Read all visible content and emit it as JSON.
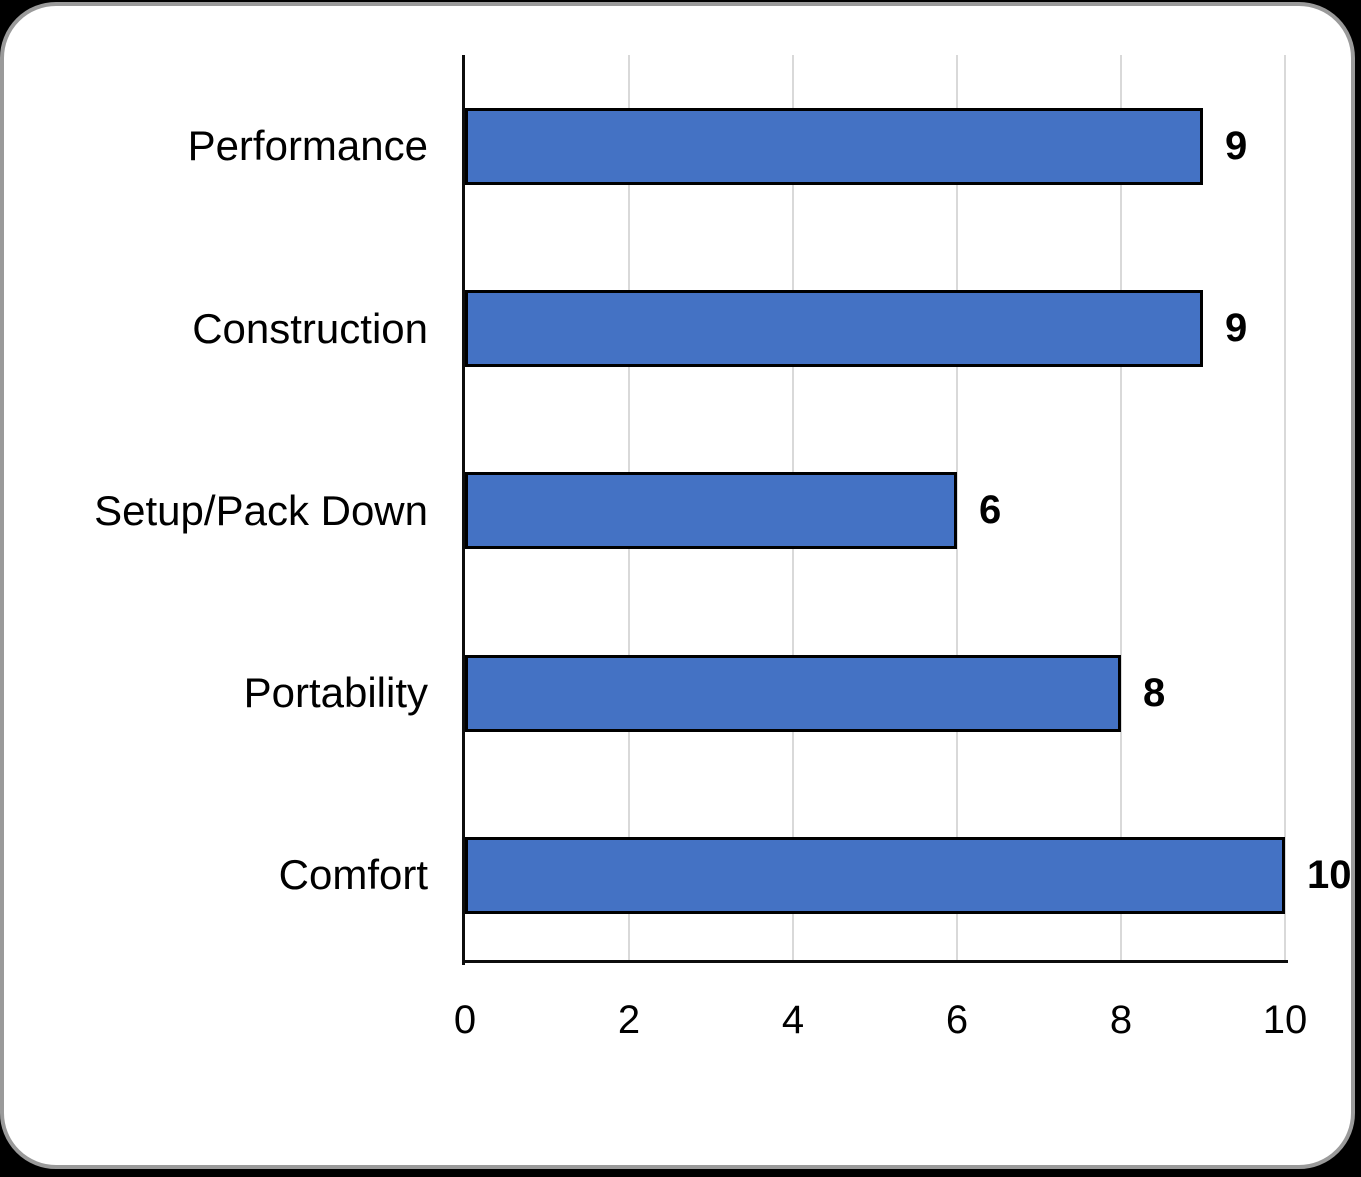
{
  "chart_data": {
    "type": "bar",
    "orientation": "horizontal",
    "title": "",
    "xlabel": "",
    "ylabel": "",
    "categories": [
      "Performance",
      "Construction",
      "Setup/Pack Down",
      "Portability",
      "Comfort"
    ],
    "values": [
      9,
      9,
      6,
      8,
      10
    ],
    "data_labels": [
      "9",
      "9",
      "6",
      "8",
      "10"
    ],
    "xlim": [
      0,
      10
    ],
    "x_ticks": [
      "0",
      "2",
      "4",
      "6",
      "8",
      "10"
    ],
    "grid": "vertical-only",
    "legend": "none",
    "colors": {
      "bar_fill": "#4472C4",
      "bar_border": "#000000",
      "gridline": "#D9D9D9",
      "axis_line": "#0D0D0D",
      "text": "#000000"
    }
  },
  "canvas": {
    "background": "#000000",
    "card_background": "#FFFFFF",
    "card_border": "#9A9A9A"
  }
}
